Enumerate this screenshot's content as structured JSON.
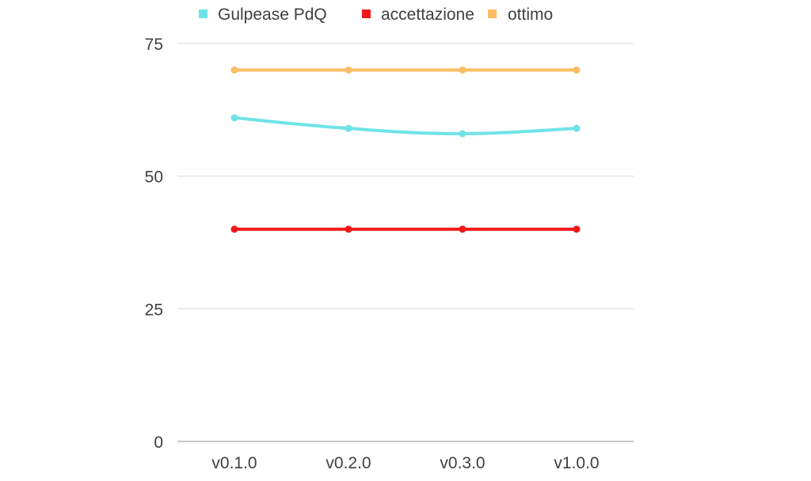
{
  "chart_data": {
    "type": "line",
    "categories": [
      "v0.1.0",
      "v0.2.0",
      "v0.3.0",
      "v1.0.0"
    ],
    "series": [
      {
        "name": "Gulpease PdQ",
        "values": [
          61,
          59,
          58,
          59
        ],
        "color": "#6fe3e6",
        "smooth": true
      },
      {
        "name": "accettazione",
        "values": [
          40,
          40,
          40,
          40
        ],
        "color": "#f01919",
        "smooth": false
      },
      {
        "name": "ottimo",
        "values": [
          70,
          70,
          70,
          70
        ],
        "color": "#fcbd63",
        "smooth": false
      }
    ],
    "ylim": [
      0,
      75
    ],
    "yticks": [
      0,
      25,
      50,
      75
    ],
    "grid": true,
    "legend": "top-center",
    "title": "",
    "xlabel": "",
    "ylabel": ""
  }
}
